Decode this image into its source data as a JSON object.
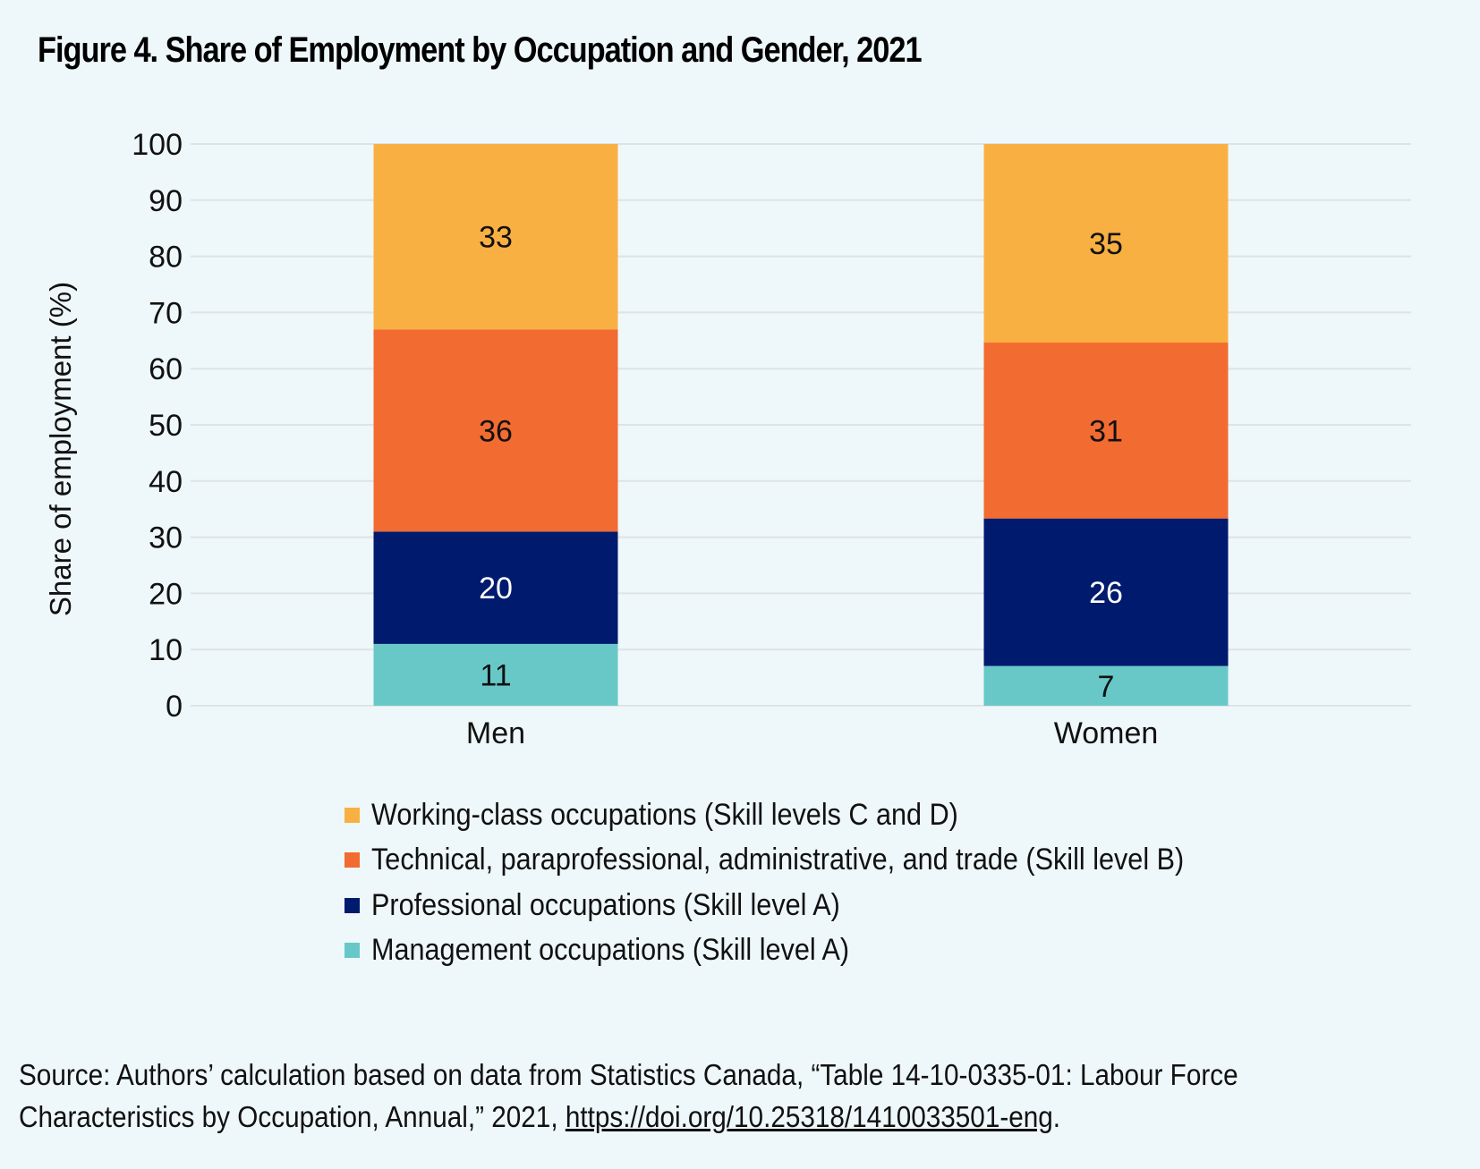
{
  "title": "Figure 4. Share of Employment by Occupation and Gender, 2021",
  "chart_data": {
    "type": "bar",
    "stacked": true,
    "title": "Figure 4. Share of Employment by Occupation and Gender, 2021",
    "xlabel": "",
    "ylabel": "Share of employment (%)",
    "ylim": [
      0,
      100
    ],
    "yticks": [
      0,
      10,
      20,
      30,
      40,
      50,
      60,
      70,
      80,
      90,
      100
    ],
    "grid": true,
    "categories": [
      "Men",
      "Women"
    ],
    "series": [
      {
        "name": "Management occupations (Skill level A)",
        "color": "#68c8c8",
        "label_color": "#111111",
        "values": [
          11,
          7
        ]
      },
      {
        "name": "Professional occupations (Skill level A)",
        "color": "#001a6e",
        "label_color": "#ffffff",
        "values": [
          20,
          26
        ]
      },
      {
        "name": "Technical, paraprofessional, administrative, and trade (Skill level B)",
        "color": "#f26b31",
        "label_color": "#111111",
        "values": [
          36,
          31
        ]
      },
      {
        "name": "Working-class occupations (Skill levels C and D)",
        "color": "#f9b042",
        "label_color": "#111111",
        "values": [
          33,
          35
        ]
      }
    ],
    "legend_position": "bottom",
    "legend_order": [
      3,
      2,
      1,
      0
    ]
  },
  "legend": [
    {
      "label": "Working-class occupations (Skill levels C and D)",
      "color": "#f9b042"
    },
    {
      "label": "Technical, paraprofessional, administrative, and trade (Skill level B)",
      "color": "#f26b31"
    },
    {
      "label": "Professional occupations (Skill level A)",
      "color": "#001a6e"
    },
    {
      "label": "Management occupations (Skill level A)",
      "color": "#68c8c8"
    }
  ],
  "source": {
    "line1": "Source: Authors’ calculation based on data from Statistics Canada, “Table 14-10-0335-01: Labour Force",
    "line2_prefix": "Characteristics by Occupation, Annual,” 2021, ",
    "link_text": "https://doi.org/10.25318/1410033501-eng",
    "line2_suffix": "."
  }
}
